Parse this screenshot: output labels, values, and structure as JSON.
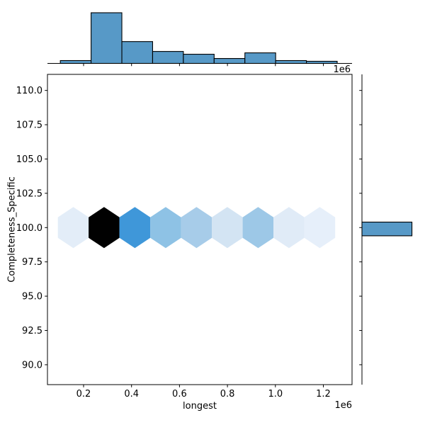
{
  "colors": {
    "background": "#ffffff",
    "bar_fill": "#5799c7",
    "bar_edge": "#000000",
    "axis_color": "#000000"
  },
  "labels": {
    "xlabel": "longest",
    "ylabel": "Completeness_Specific",
    "x_offset_top": "1e6",
    "x_offset_bottom": "1e6"
  },
  "chart_data": {
    "type": "hexbin_jointplot",
    "title": "",
    "xlabel": "longest",
    "ylabel": "Completeness_Specific",
    "x_unit_multiplier": "1e6",
    "x_ticks": [
      0.2,
      0.4,
      0.6,
      0.8,
      1.0,
      1.2
    ],
    "y_ticks": [
      110.0,
      107.5,
      105.0,
      102.5,
      100.0,
      97.5,
      95.0,
      92.5,
      90.0
    ],
    "xlim": [
      0.0493,
      1.3197
    ],
    "ylim": [
      88.55,
      111.17
    ],
    "grid": false,
    "legend": "none",
    "hexbin": {
      "row_y": 100.0,
      "centers_x": [
        0.157,
        0.2855,
        0.414,
        0.5425,
        0.671,
        0.7995,
        0.928,
        1.0565,
        1.185
      ],
      "cell_colors": [
        "#e3edf8",
        "#010101",
        "#3f97d9",
        "#8ec2e5",
        "#a7cce9",
        "#d3e4f3",
        "#9dc8e7",
        "#e0ebf7",
        "#e6effa"
      ],
      "relative_density": [
        0.08,
        1.0,
        0.6,
        0.4,
        0.33,
        0.17,
        0.36,
        0.1,
        0.06
      ]
    },
    "top_marginal": {
      "type": "bar",
      "bin_edges_x": [
        0.103,
        0.2313,
        0.3596,
        0.4879,
        0.6162,
        0.7445,
        0.8728,
        1.0011,
        1.1294,
        1.2577
      ],
      "heights_rel": [
        0.056,
        1.0,
        0.431,
        0.236,
        0.181,
        0.097,
        0.208,
        0.056,
        0.042
      ]
    },
    "right_marginal": {
      "type": "bar",
      "bin_edges_y": [
        99.4,
        100.4
      ],
      "length_rel": 0.98
    }
  }
}
